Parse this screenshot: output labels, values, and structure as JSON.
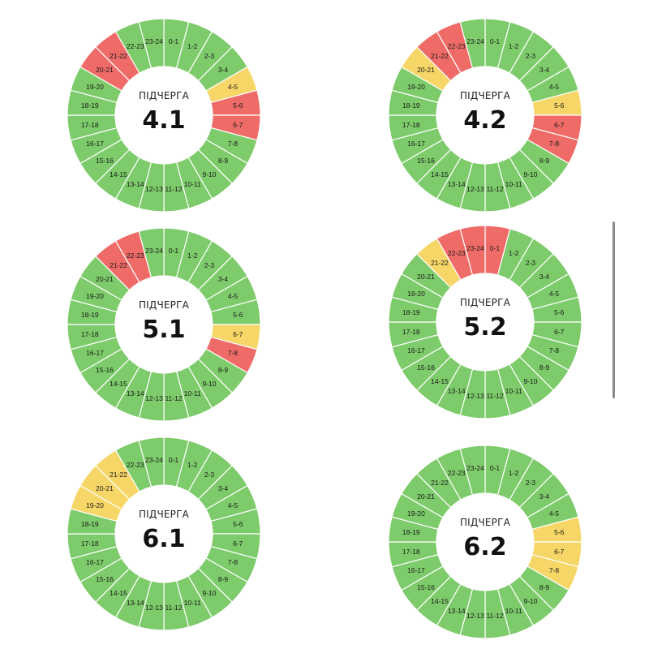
{
  "colors": {
    "on": "#7dcb6a",
    "possible": "#f6d666",
    "off": "#ef6b68"
  },
  "hour_labels": [
    "0-1",
    "1-2",
    "2-3",
    "3-4",
    "4-5",
    "5-6",
    "6-7",
    "7-8",
    "8-9",
    "9-10",
    "10-11",
    "11-12",
    "12-13",
    "13-14",
    "14-15",
    "15-16",
    "16-17",
    "17-18",
    "18-19",
    "19-20",
    "20-21",
    "21-22",
    "22-23",
    "23-24"
  ],
  "wheels": [
    {
      "caption": "ПІДЧЕРГА",
      "number": "4.1",
      "status": [
        "on",
        "on",
        "on",
        "on",
        "possible",
        "off",
        "off",
        "on",
        "on",
        "on",
        "on",
        "on",
        "on",
        "on",
        "on",
        "on",
        "on",
        "on",
        "on",
        "on",
        "off",
        "off",
        "on",
        "on"
      ]
    },
    {
      "caption": "ПІДЧЕРГА",
      "number": "4.2",
      "status": [
        "on",
        "on",
        "on",
        "on",
        "on",
        "possible",
        "off",
        "off",
        "on",
        "on",
        "on",
        "on",
        "on",
        "on",
        "on",
        "on",
        "on",
        "on",
        "on",
        "on",
        "possible",
        "off",
        "off",
        "on"
      ]
    },
    {
      "caption": "ПІДЧЕРГА",
      "number": "5.1",
      "status": [
        "on",
        "on",
        "on",
        "on",
        "on",
        "on",
        "possible",
        "off",
        "on",
        "on",
        "on",
        "on",
        "on",
        "on",
        "on",
        "on",
        "on",
        "on",
        "on",
        "on",
        "on",
        "off",
        "off",
        "on"
      ]
    },
    {
      "caption": "ПІДЧЕРГА",
      "number": "5.2",
      "status": [
        "off",
        "on",
        "on",
        "on",
        "on",
        "on",
        "on",
        "on",
        "on",
        "on",
        "on",
        "on",
        "on",
        "on",
        "on",
        "on",
        "on",
        "on",
        "on",
        "on",
        "on",
        "possible",
        "off",
        "off"
      ]
    },
    {
      "caption": "ПІДЧЕРГА",
      "number": "6.1",
      "status": [
        "on",
        "on",
        "on",
        "on",
        "on",
        "on",
        "on",
        "on",
        "on",
        "on",
        "on",
        "on",
        "on",
        "on",
        "on",
        "on",
        "on",
        "on",
        "on",
        "possible",
        "possible",
        "possible",
        "on",
        "on"
      ]
    },
    {
      "caption": "ПІДЧЕРГА",
      "number": "6.2",
      "status": [
        "on",
        "on",
        "on",
        "on",
        "on",
        "possible",
        "possible",
        "possible",
        "on",
        "on",
        "on",
        "on",
        "on",
        "on",
        "on",
        "on",
        "on",
        "on",
        "on",
        "on",
        "on",
        "on",
        "on",
        "on"
      ]
    }
  ]
}
